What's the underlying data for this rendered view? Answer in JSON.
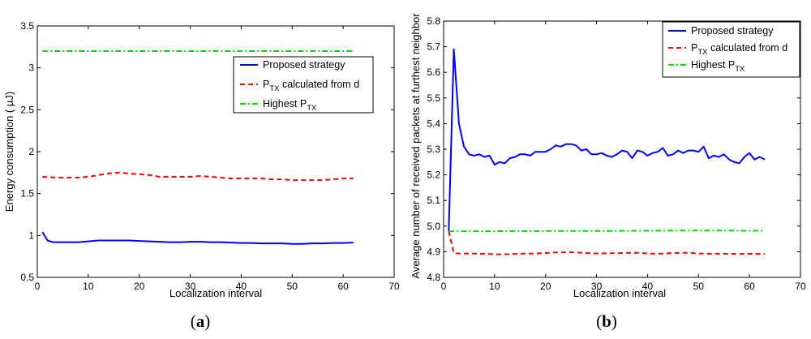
{
  "chart_data": [
    {
      "type": "line",
      "panel_label": "a",
      "title": "",
      "xlabel": "Localization interval",
      "ylabel": "Energy consumption ( µJ)",
      "xlim": [
        0,
        70
      ],
      "ylim": [
        0.5,
        3.5
      ],
      "xticks": [
        0,
        10,
        20,
        30,
        40,
        50,
        60,
        70
      ],
      "yticks": [
        0.5,
        1,
        1.5,
        2,
        2.5,
        3,
        3.5
      ],
      "grid": false,
      "legend_position": "right",
      "series": [
        {
          "name": "Proposed strategy",
          "legend_main": "Proposed strategy",
          "legend_sub": "",
          "legend_tail": "",
          "color": "#0000ff",
          "dash": "solid",
          "x": [
            1,
            2,
            3,
            5,
            8,
            10,
            12,
            14,
            16,
            18,
            20,
            22,
            24,
            26,
            28,
            30,
            32,
            34,
            36,
            38,
            40,
            42,
            44,
            46,
            48,
            50,
            52,
            54,
            56,
            58,
            60,
            62
          ],
          "y": [
            1.04,
            0.94,
            0.92,
            0.92,
            0.92,
            0.93,
            0.94,
            0.94,
            0.94,
            0.94,
            0.935,
            0.93,
            0.925,
            0.92,
            0.92,
            0.925,
            0.925,
            0.92,
            0.92,
            0.915,
            0.91,
            0.91,
            0.905,
            0.905,
            0.905,
            0.9,
            0.9,
            0.905,
            0.905,
            0.91,
            0.91,
            0.915
          ]
        },
        {
          "name": "PTX calculated from d",
          "legend_main": "P",
          "legend_sub": "TX",
          "legend_tail": " calculated from d",
          "color": "#ff0000",
          "dash": "dashed",
          "x": [
            1,
            4,
            8,
            10,
            12,
            14,
            16,
            18,
            20,
            22,
            24,
            26,
            28,
            30,
            32,
            34,
            36,
            38,
            40,
            42,
            44,
            46,
            48,
            50,
            52,
            54,
            56,
            58,
            60,
            62
          ],
          "y": [
            1.7,
            1.69,
            1.69,
            1.7,
            1.72,
            1.74,
            1.75,
            1.74,
            1.73,
            1.72,
            1.7,
            1.7,
            1.7,
            1.7,
            1.71,
            1.7,
            1.69,
            1.68,
            1.68,
            1.68,
            1.68,
            1.67,
            1.67,
            1.66,
            1.66,
            1.66,
            1.66,
            1.67,
            1.68,
            1.68
          ]
        },
        {
          "name": "Highest PTX",
          "legend_main": "Highest P",
          "legend_sub": "TX",
          "legend_tail": "",
          "color": "#00dd00",
          "dash": "dashdot",
          "x": [
            1,
            62
          ],
          "y": [
            3.2,
            3.2
          ]
        }
      ]
    },
    {
      "type": "line",
      "panel_label": "b",
      "title": "",
      "xlabel": "Localization interval",
      "ylabel": "Average number of received packets at furthest neighbor",
      "xlim": [
        0,
        70
      ],
      "ylim": [
        4.8,
        5.8
      ],
      "xticks": [
        0,
        10,
        20,
        30,
        40,
        50,
        60,
        70
      ],
      "yticks": [
        4.8,
        4.9,
        5,
        5.1,
        5.2,
        5.3,
        5.4,
        5.5,
        5.6,
        5.7,
        5.8
      ],
      "grid": false,
      "legend_position": "top-right",
      "series": [
        {
          "name": "Proposed strategy",
          "legend_main": "Proposed strategy",
          "legend_sub": "",
          "legend_tail": "",
          "color": "#0000ff",
          "dash": "solid",
          "x": [
            1,
            2,
            3,
            4,
            5,
            6,
            7,
            8,
            9,
            10,
            11,
            12,
            13,
            14,
            15,
            16,
            17,
            18,
            19,
            20,
            21,
            22,
            23,
            24,
            25,
            26,
            27,
            28,
            29,
            30,
            31,
            32,
            33,
            34,
            35,
            36,
            37,
            38,
            39,
            40,
            41,
            42,
            43,
            44,
            45,
            46,
            47,
            48,
            49,
            50,
            51,
            52,
            53,
            54,
            55,
            56,
            57,
            58,
            59,
            60,
            61,
            62,
            63
          ],
          "y": [
            4.98,
            5.69,
            5.4,
            5.31,
            5.28,
            5.275,
            5.28,
            5.27,
            5.275,
            5.24,
            5.25,
            5.245,
            5.265,
            5.27,
            5.28,
            5.28,
            5.275,
            5.29,
            5.29,
            5.29,
            5.3,
            5.315,
            5.31,
            5.32,
            5.32,
            5.315,
            5.295,
            5.3,
            5.28,
            5.28,
            5.285,
            5.275,
            5.27,
            5.28,
            5.295,
            5.29,
            5.265,
            5.295,
            5.29,
            5.275,
            5.285,
            5.29,
            5.305,
            5.275,
            5.28,
            5.295,
            5.285,
            5.295,
            5.295,
            5.29,
            5.31,
            5.265,
            5.275,
            5.27,
            5.28,
            5.26,
            5.25,
            5.245,
            5.27,
            5.285,
            5.26,
            5.27,
            5.26
          ]
        },
        {
          "name": "PTX calculated from d",
          "legend_main": "P",
          "legend_sub": "TX",
          "legend_tail": " calculated from d",
          "color": "#ff0000",
          "dash": "dashed",
          "x": [
            1,
            2,
            3,
            5,
            8,
            10,
            12,
            15,
            18,
            20,
            22,
            25,
            28,
            30,
            32,
            35,
            38,
            40,
            42,
            45,
            48,
            50,
            52,
            55,
            58,
            60,
            63
          ],
          "y": [
            4.98,
            4.895,
            4.893,
            4.893,
            4.892,
            4.89,
            4.89,
            4.892,
            4.893,
            4.895,
            4.897,
            4.898,
            4.895,
            4.893,
            4.894,
            4.895,
            4.896,
            4.893,
            4.892,
            4.895,
            4.896,
            4.893,
            4.892,
            4.892,
            4.891,
            4.892,
            4.891
          ]
        },
        {
          "name": "Highest PTX",
          "legend_main": "Highest P",
          "legend_sub": "TX",
          "legend_tail": "",
          "color": "#00dd00",
          "dash": "dashdot",
          "x": [
            1,
            10,
            20,
            30,
            40,
            50,
            60,
            63
          ],
          "y": [
            4.98,
            4.98,
            4.981,
            4.981,
            4.982,
            4.983,
            4.982,
            4.982
          ]
        }
      ]
    }
  ]
}
